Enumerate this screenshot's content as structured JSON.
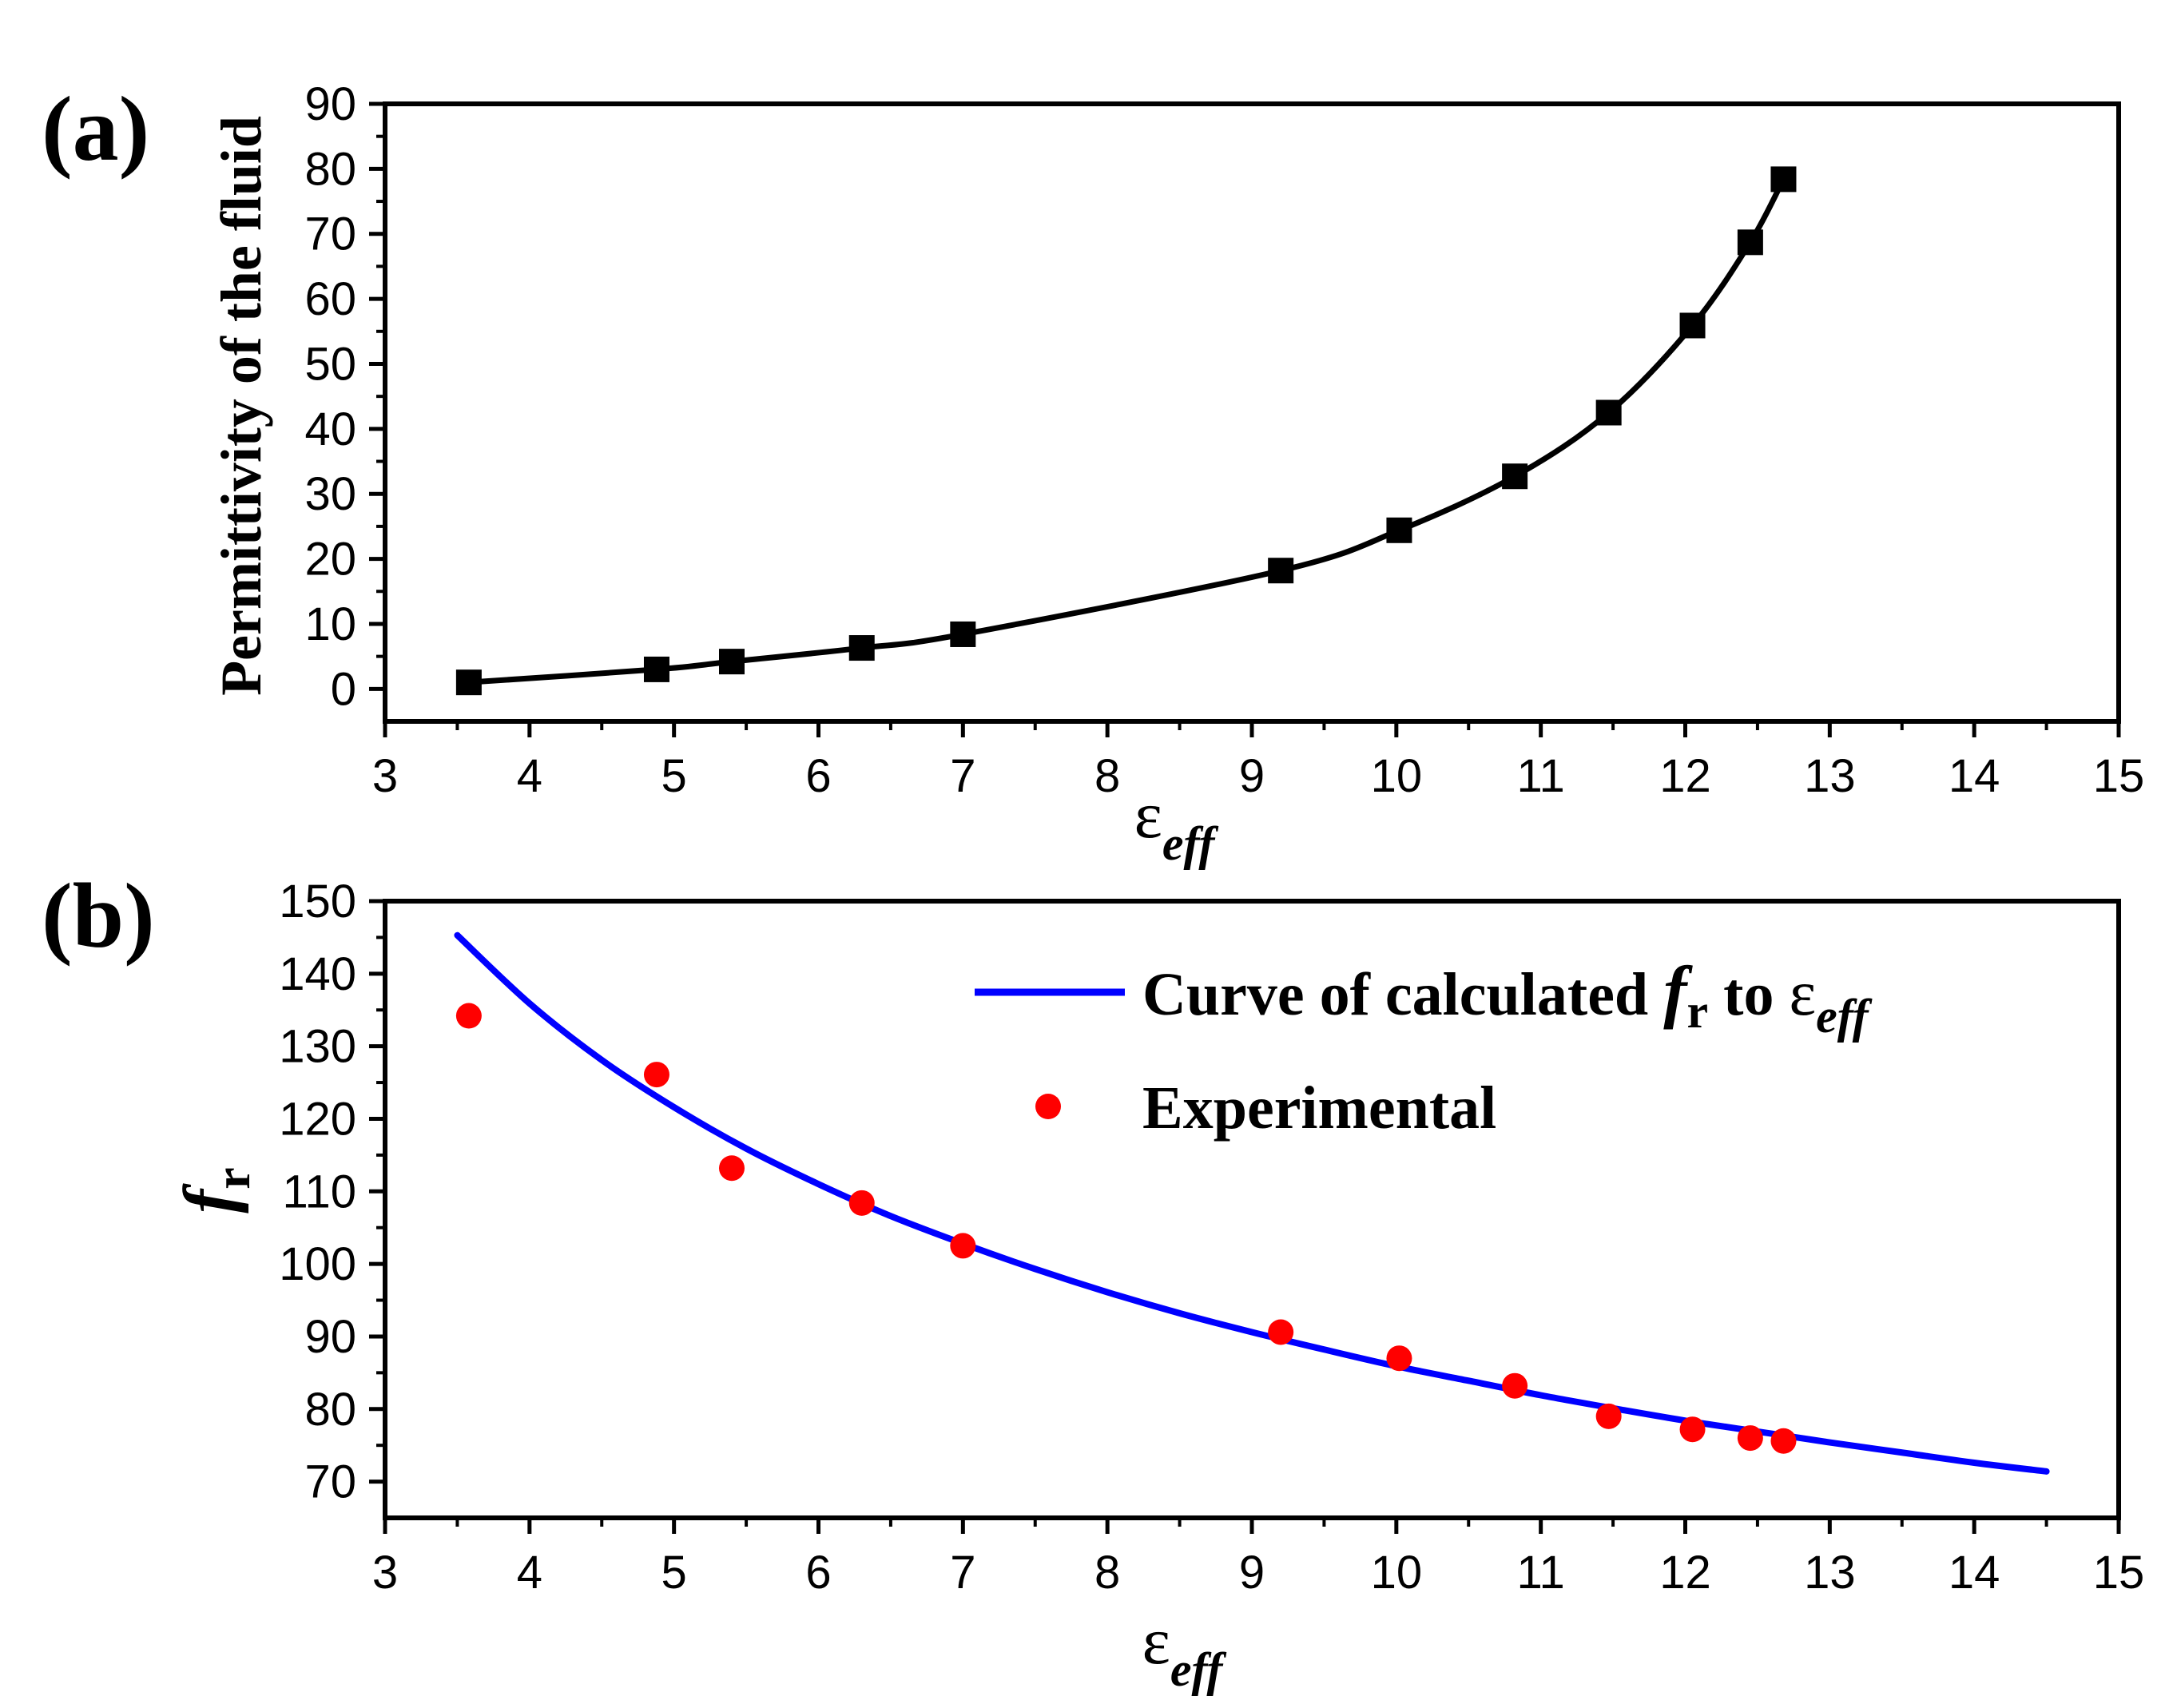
{
  "chart_data": [
    {
      "panel_label": "(a)",
      "type": "line",
      "title": "",
      "xlabel": {
        "symbol": "ε",
        "subscript": "eff"
      },
      "ylabel": "Permittivity of the fluid",
      "xlim": [
        3,
        15
      ],
      "ylim": [
        -5,
        90
      ],
      "xticks": [
        3,
        4,
        5,
        6,
        7,
        8,
        9,
        10,
        11,
        12,
        13,
        14,
        15
      ],
      "yticks": [
        0,
        10,
        20,
        30,
        40,
        50,
        60,
        70,
        80,
        90
      ],
      "grid": false,
      "series": [
        {
          "name": "Permittivity of the fluid",
          "marker": "square",
          "color": "#000000",
          "x": [
            3.58,
            4.88,
            5.4,
            6.3,
            7.0,
            9.2,
            10.02,
            10.82,
            11.47,
            12.05,
            12.45,
            12.68
          ],
          "y": [
            1,
            3,
            4.2,
            6.3,
            8.4,
            18.2,
            24.4,
            32.7,
            42.5,
            55.9,
            68.7,
            78.4
          ]
        }
      ]
    },
    {
      "panel_label": "(b)",
      "type": "line",
      "title": "",
      "xlabel": {
        "symbol": "ε",
        "subscript": "eff"
      },
      "ylabel": {
        "symbol": "f",
        "subscript": "r"
      },
      "xlim": [
        3,
        15
      ],
      "ylim": [
        65,
        150
      ],
      "xticks": [
        3,
        4,
        5,
        6,
        7,
        8,
        9,
        10,
        11,
        12,
        13,
        14,
        15
      ],
      "yticks": [
        70,
        80,
        90,
        100,
        110,
        120,
        130,
        140,
        150
      ],
      "grid": false,
      "legend_position": "top-right",
      "series": [
        {
          "name": "Curve of calculated fr to εeff",
          "legend_parts": [
            "Curve of calculated ",
            "f",
            "r",
            " to ",
            "ε",
            "eff"
          ],
          "kind": "line",
          "color": "#0000ff",
          "x": [
            3.5,
            4.0,
            4.5,
            5.0,
            5.5,
            6.0,
            6.5,
            7.0,
            7.5,
            8.0,
            8.5,
            9.0,
            9.5,
            10.0,
            10.5,
            11.0,
            11.5,
            12.0,
            12.5,
            13.0,
            13.5,
            14.0,
            14.5
          ],
          "y": [
            145.3,
            135.9,
            128.1,
            121.6,
            115.9,
            111.0,
            106.6,
            102.8,
            99.3,
            96.1,
            93.2,
            90.6,
            88.2,
            85.9,
            83.9,
            81.9,
            80.1,
            78.4,
            76.9,
            75.4,
            74.0,
            72.6,
            71.4
          ]
        },
        {
          "name": "Experimental",
          "kind": "scatter",
          "color": "#ff0000",
          "x": [
            3.58,
            4.88,
            5.4,
            6.3,
            7.0,
            9.2,
            10.02,
            10.82,
            11.47,
            12.05,
            12.45,
            12.68
          ],
          "y": [
            134.2,
            126.1,
            113.2,
            108.4,
            102.5,
            90.6,
            87.0,
            83.2,
            79.0,
            77.2,
            76.0,
            75.6
          ]
        }
      ]
    }
  ]
}
